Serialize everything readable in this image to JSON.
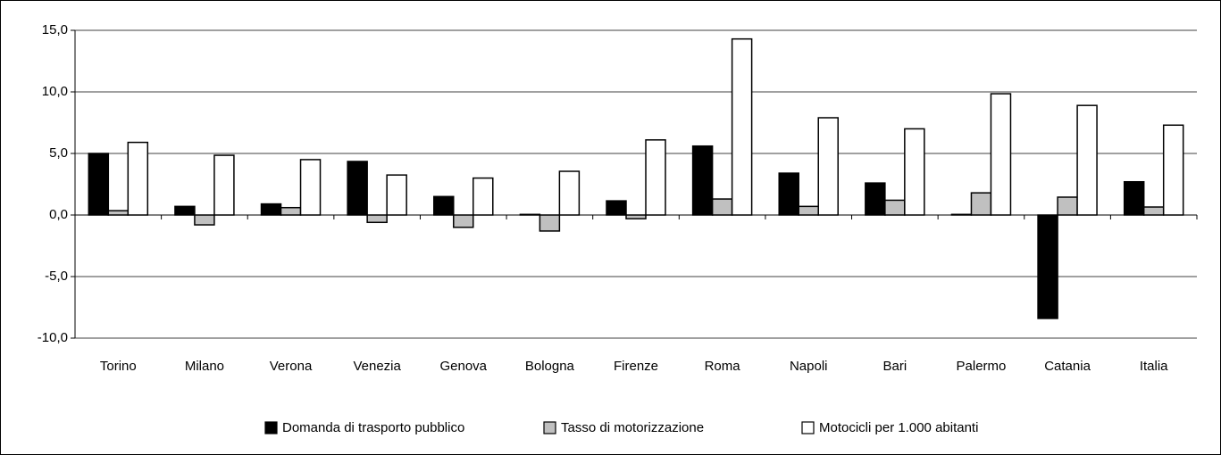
{
  "chart_data": {
    "type": "bar",
    "categories": [
      "Torino",
      "Milano",
      "Verona",
      "Venezia",
      "Genova",
      "Bologna",
      "Firenze",
      "Roma",
      "Napoli",
      "Bari",
      "Palermo",
      "Catania",
      "Italia"
    ],
    "series": [
      {
        "name": "Domanda di trasporto pubblico",
        "color": "#000000",
        "values": [
          5.0,
          0.7,
          0.9,
          4.35,
          1.5,
          0.05,
          1.15,
          5.6,
          3.4,
          2.6,
          0.05,
          -8.4,
          2.7
        ]
      },
      {
        "name": "Tasso di motorizzazione",
        "color": "#c0c0c0",
        "values": [
          0.35,
          -0.8,
          0.6,
          -0.6,
          -1.0,
          -1.3,
          -0.3,
          1.3,
          0.7,
          1.2,
          1.8,
          1.45,
          0.65
        ]
      },
      {
        "name": "Motocicli per 1.000 abitanti",
        "color": "#ffffff",
        "values": [
          5.9,
          4.85,
          4.5,
          3.25,
          3.0,
          3.55,
          6.1,
          14.3,
          7.9,
          7.0,
          9.85,
          8.9,
          7.3
        ]
      }
    ],
    "ylim": [
      -10,
      15
    ],
    "yticks": [
      {
        "value": -10,
        "label": "-10,0"
      },
      {
        "value": -5,
        "label": "-5,0"
      },
      {
        "value": 0,
        "label": "0,0"
      },
      {
        "value": 5,
        "label": "5,0"
      },
      {
        "value": 10,
        "label": "10,0"
      },
      {
        "value": 15,
        "label": "15,0"
      }
    ],
    "grid": true,
    "legend": "bottom"
  }
}
